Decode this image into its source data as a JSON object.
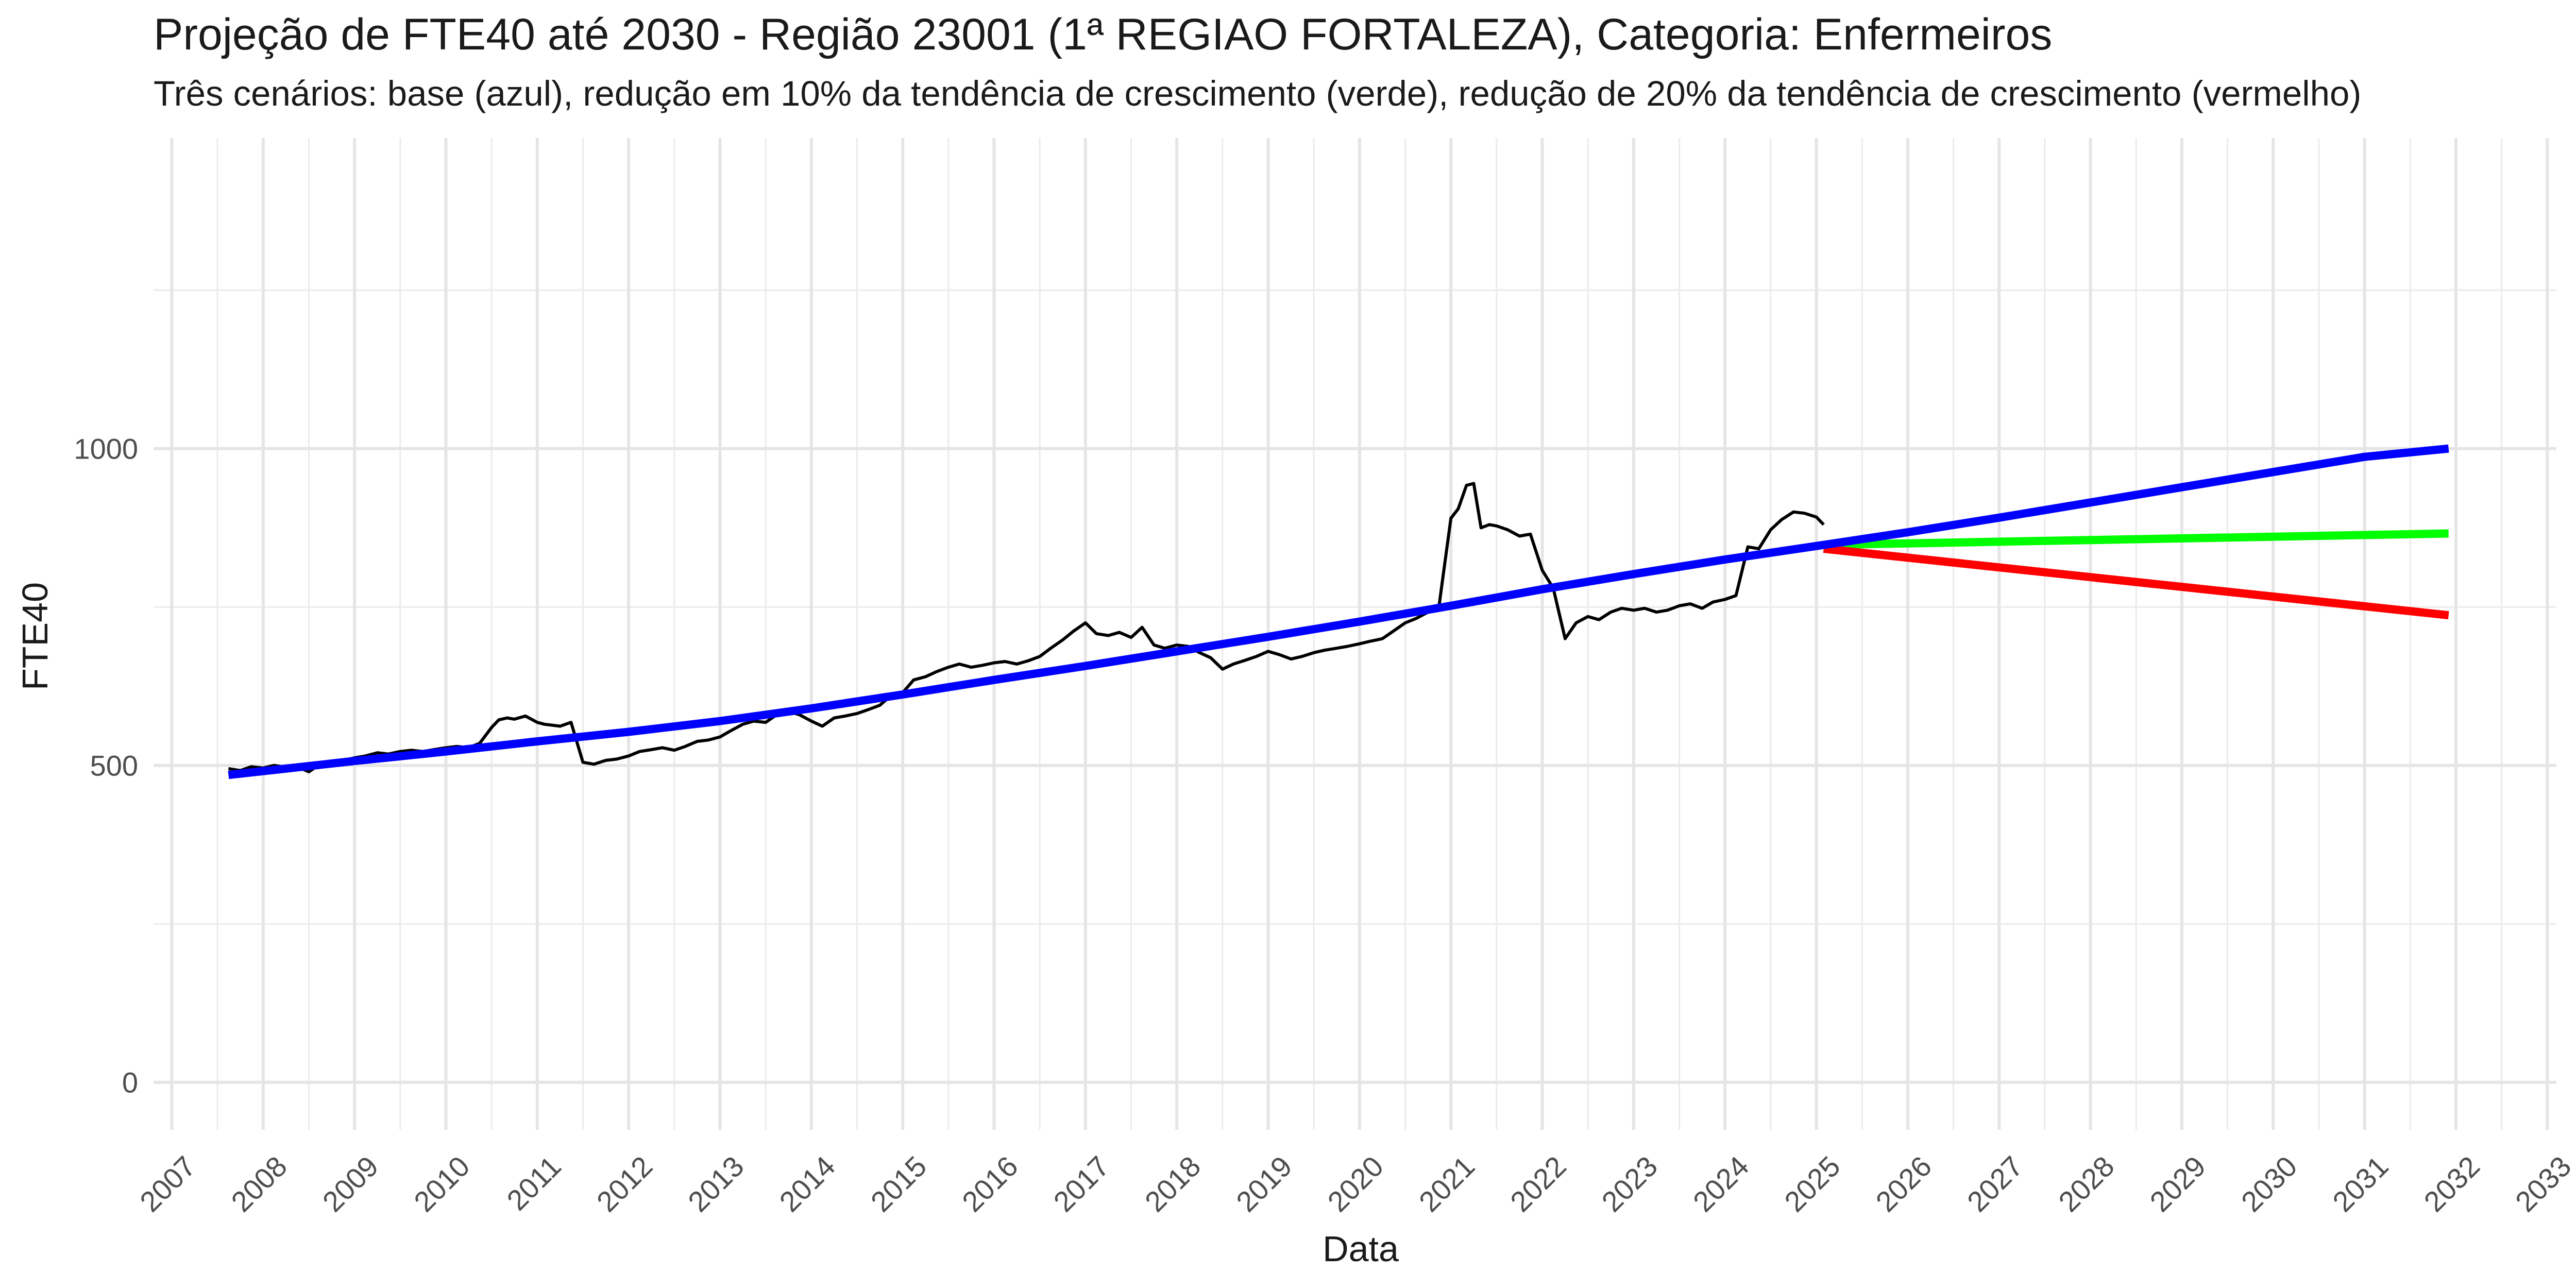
{
  "chart_data": {
    "type": "line",
    "title": "Projeção de FTE40 até 2030 - Região 23001 (1ª REGIAO FORTALEZA), Categoria: Enfermeiros",
    "subtitle": "Três cenários: base (azul), redução em 10% da tendência de crescimento (verde), redução de 20% da tendência de crescimento (vermelho)",
    "xlabel": "Data",
    "ylabel": "FTE40",
    "xlim": [
      2006.8,
      2033.1
    ],
    "ylim": [
      -75,
      1490
    ],
    "x_ticks": [
      "2007",
      "2008",
      "2009",
      "2010",
      "2011",
      "2012",
      "2013",
      "2014",
      "2015",
      "2016",
      "2017",
      "2018",
      "2019",
      "2020",
      "2021",
      "2022",
      "2023",
      "2024",
      "2025",
      "2026",
      "2027",
      "2028",
      "2029",
      "2030",
      "2031",
      "2032",
      "2033"
    ],
    "y_ticks": [
      0,
      500,
      1000
    ],
    "y_minor_gridlines": [
      250,
      750,
      1250
    ],
    "grid": true,
    "legend": "none",
    "series": [
      {
        "role": "observed",
        "color": "#000000",
        "x": [
          2007.62,
          2007.75,
          2007.87,
          2008.0,
          2008.12,
          2008.25,
          2008.37,
          2008.5,
          2008.62,
          2008.75,
          2008.87,
          2009.0,
          2009.12,
          2009.25,
          2009.37,
          2009.5,
          2009.62,
          2009.75,
          2009.87,
          2010.0,
          2010.12,
          2010.25,
          2010.37,
          2010.5,
          2010.58,
          2010.67,
          2010.75,
          2010.87,
          2011.0,
          2011.08,
          2011.25,
          2011.37,
          2011.5,
          2011.62,
          2011.75,
          2011.87,
          2012.0,
          2012.12,
          2012.25,
          2012.37,
          2012.5,
          2012.62,
          2012.75,
          2012.87,
          2013.0,
          2013.12,
          2013.25,
          2013.37,
          2013.5,
          2013.62,
          2013.75,
          2013.87,
          2014.0,
          2014.12,
          2014.25,
          2014.37,
          2014.5,
          2014.62,
          2014.75,
          2014.87,
          2015.0,
          2015.12,
          2015.25,
          2015.37,
          2015.5,
          2015.62,
          2015.75,
          2015.87,
          2016.0,
          2016.12,
          2016.25,
          2016.37,
          2016.5,
          2016.62,
          2016.75,
          2016.87,
          2017.0,
          2017.12,
          2017.25,
          2017.37,
          2017.5,
          2017.62,
          2017.75,
          2017.87,
          2018.0,
          2018.12,
          2018.25,
          2018.37,
          2018.5,
          2018.62,
          2018.75,
          2018.87,
          2019.0,
          2019.12,
          2019.25,
          2019.37,
          2019.5,
          2019.62,
          2019.75,
          2019.87,
          2020.0,
          2020.12,
          2020.25,
          2020.37,
          2020.5,
          2020.62,
          2020.75,
          2020.87,
          2021.0,
          2021.08,
          2021.17,
          2021.25,
          2021.33,
          2021.42,
          2021.5,
          2021.62,
          2021.75,
          2021.87,
          2022.0,
          2022.12,
          2022.25,
          2022.37,
          2022.5,
          2022.62,
          2022.75,
          2022.87,
          2023.0,
          2023.12,
          2023.25,
          2023.37,
          2023.5,
          2023.62,
          2023.75,
          2023.87,
          2024.0,
          2024.12,
          2024.25,
          2024.37,
          2024.5,
          2024.62,
          2024.75,
          2024.87,
          2025.0,
          2025.08
        ],
        "y": [
          495,
          492,
          498,
          496,
          500,
          497,
          498,
          490,
          502,
          505,
          508,
          512,
          515,
          520,
          518,
          522,
          524,
          522,
          525,
          528,
          530,
          528,
          535,
          560,
          572,
          575,
          573,
          578,
          568,
          565,
          562,
          568,
          505,
          502,
          508,
          510,
          515,
          522,
          525,
          528,
          524,
          530,
          538,
          540,
          545,
          555,
          565,
          570,
          568,
          580,
          585,
          580,
          570,
          562,
          575,
          578,
          582,
          588,
          595,
          610,
          615,
          635,
          640,
          648,
          655,
          660,
          655,
          658,
          662,
          664,
          660,
          665,
          672,
          685,
          698,
          712,
          725,
          708,
          705,
          710,
          702,
          718,
          690,
          685,
          690,
          688,
          678,
          670,
          652,
          660,
          666,
          672,
          680,
          675,
          668,
          672,
          678,
          682,
          685,
          688,
          692,
          696,
          700,
          712,
          725,
          732,
          742,
          752,
          890,
          905,
          942,
          945,
          875,
          880,
          878,
          872,
          862,
          865,
          808,
          780,
          700,
          725,
          735,
          730,
          742,
          748,
          745,
          748,
          742,
          745,
          752,
          755,
          748,
          758,
          762,
          768,
          845,
          842,
          872,
          888,
          900,
          898,
          892,
          880
        ]
      },
      {
        "name": "base",
        "color": "#0000ff",
        "x": [
          2007.62,
          2009.0,
          2010.0,
          2011.0,
          2012.0,
          2013.0,
          2014.0,
          2015.0,
          2016.0,
          2017.0,
          2018.0,
          2019.0,
          2020.0,
          2021.0,
          2022.0,
          2023.0,
          2024.0,
          2025.08,
          2026.0,
          2027.0,
          2028.0,
          2029.0,
          2030.0,
          2031.0,
          2031.92
        ],
        "y": [
          485,
          507,
          522,
          538,
          553,
          570,
          590,
          612,
          635,
          657,
          680,
          703,
          727,
          752,
          778,
          802,
          825,
          848,
          868,
          891,
          915,
          939,
          963,
          987,
          1000
        ]
      },
      {
        "name": "redução 10%",
        "color": "#00ff00",
        "x": [
          2025.08,
          2031.92
        ],
        "y": [
          848,
          866
        ]
      },
      {
        "name": "redução 20%",
        "color": "#ff0000",
        "x": [
          2025.08,
          2031.92
        ],
        "y": [
          842,
          737
        ]
      }
    ]
  }
}
